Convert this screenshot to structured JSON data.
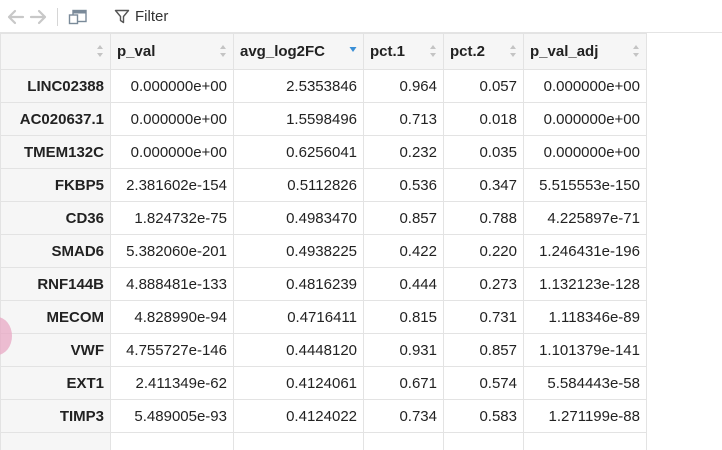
{
  "toolbar": {
    "back_icon": "arrow-left-icon",
    "forward_icon": "arrow-right-icon",
    "popout_icon": "popout-window-icon",
    "filter_icon": "funnel-icon",
    "filter_label": "Filter"
  },
  "colors": {
    "sort_active": "#3a8fd6",
    "sort_inactive": "#c4c4c4",
    "header_bg": "#f6f6f6",
    "grid_line": "#e3e3e3",
    "accent_dot": "#e8a8c4"
  },
  "table": {
    "columns": [
      {
        "label": "",
        "sort": "none"
      },
      {
        "label": "p_val",
        "sort": "none"
      },
      {
        "label": "avg_log2FC",
        "sort": "descending"
      },
      {
        "label": "pct.1",
        "sort": "none"
      },
      {
        "label": "pct.2",
        "sort": "none"
      },
      {
        "label": "p_val_adj",
        "sort": "none"
      }
    ],
    "rows": [
      {
        "name": "LINC02388",
        "p_val": "0.000000e+00",
        "avg_log2FC": "2.5353846",
        "pct1": "0.964",
        "pct2": "0.057",
        "p_val_adj": "0.000000e+00"
      },
      {
        "name": "AC020637.1",
        "p_val": "0.000000e+00",
        "avg_log2FC": "1.5598496",
        "pct1": "0.713",
        "pct2": "0.018",
        "p_val_adj": "0.000000e+00"
      },
      {
        "name": "TMEM132C",
        "p_val": "0.000000e+00",
        "avg_log2FC": "0.6256041",
        "pct1": "0.232",
        "pct2": "0.035",
        "p_val_adj": "0.000000e+00"
      },
      {
        "name": "FKBP5",
        "p_val": "2.381602e-154",
        "avg_log2FC": "0.5112826",
        "pct1": "0.536",
        "pct2": "0.347",
        "p_val_adj": "5.515553e-150"
      },
      {
        "name": "CD36",
        "p_val": "1.824732e-75",
        "avg_log2FC": "0.4983470",
        "pct1": "0.857",
        "pct2": "0.788",
        "p_val_adj": "4.225897e-71"
      },
      {
        "name": "SMAD6",
        "p_val": "5.382060e-201",
        "avg_log2FC": "0.4938225",
        "pct1": "0.422",
        "pct2": "0.220",
        "p_val_adj": "1.246431e-196"
      },
      {
        "name": "RNF144B",
        "p_val": "4.888481e-133",
        "avg_log2FC": "0.4816239",
        "pct1": "0.444",
        "pct2": "0.273",
        "p_val_adj": "1.132123e-128"
      },
      {
        "name": "MECOM",
        "p_val": "4.828990e-94",
        "avg_log2FC": "0.4716411",
        "pct1": "0.815",
        "pct2": "0.731",
        "p_val_adj": "1.118346e-89"
      },
      {
        "name": "VWF",
        "p_val": "4.755727e-146",
        "avg_log2FC": "0.4448120",
        "pct1": "0.931",
        "pct2": "0.857",
        "p_val_adj": "1.101379e-141"
      },
      {
        "name": "EXT1",
        "p_val": "2.411349e-62",
        "avg_log2FC": "0.4124061",
        "pct1": "0.671",
        "pct2": "0.574",
        "p_val_adj": "5.584443e-58"
      },
      {
        "name": "TIMP3",
        "p_val": "5.489005e-93",
        "avg_log2FC": "0.4124022",
        "pct1": "0.734",
        "pct2": "0.583",
        "p_val_adj": "1.271199e-88"
      },
      {
        "name": "",
        "p_val": "",
        "avg_log2FC": "",
        "pct1": "",
        "pct2": "",
        "p_val_adj": ""
      }
    ]
  }
}
